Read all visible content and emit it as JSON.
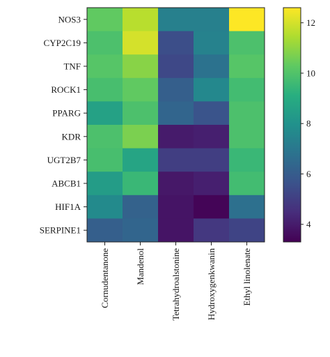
{
  "chart_data": {
    "type": "heatmap",
    "title": "",
    "xlabel": "",
    "ylabel": "",
    "rows": [
      "NOS3",
      "CYP2C19",
      "TNF",
      "ROCK1",
      "PPARG",
      "KDR",
      "UGT2B7",
      "ABCB1",
      "HIF1A",
      "SERPINE1"
    ],
    "columns": [
      "Cornudentanone",
      "Mandenol",
      "Tetrahydroalstonine",
      "Hydroxygenkwanin",
      "Ethyl linolenate"
    ],
    "values": [
      [
        10.3,
        11.6,
        7.3,
        7.3,
        12.6
      ],
      [
        9.9,
        12.0,
        5.5,
        7.4,
        9.9
      ],
      [
        10.1,
        10.9,
        5.3,
        6.8,
        10.1
      ],
      [
        9.8,
        10.3,
        6.1,
        7.6,
        9.7
      ],
      [
        8.6,
        9.9,
        6.3,
        5.7,
        9.9
      ],
      [
        9.9,
        10.7,
        4.0,
        4.1,
        9.9
      ],
      [
        9.8,
        8.7,
        5.0,
        5.0,
        9.5
      ],
      [
        8.4,
        9.5,
        3.9,
        4.1,
        9.7
      ],
      [
        7.7,
        6.2,
        3.8,
        3.4,
        6.7
      ],
      [
        6.1,
        6.3,
        3.8,
        4.8,
        5.2
      ]
    ],
    "colorbar": {
      "vmin": 3.3,
      "vmax": 12.6,
      "ticks": [
        "4",
        "6",
        "8",
        "10",
        "12"
      ],
      "tick_values": [
        4,
        6,
        8,
        10,
        12
      ],
      "colormap": "viridis"
    },
    "grid": false
  }
}
